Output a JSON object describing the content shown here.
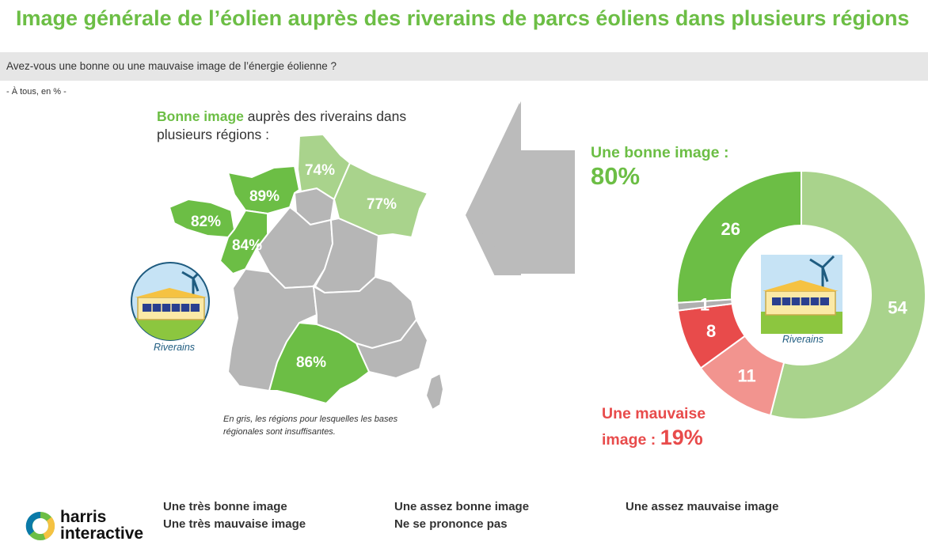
{
  "title": "Image générale de l’éolien auprès des riverains de parcs éoliens dans plusieurs régions",
  "question": "Avez-vous une bonne ou une mauvaise image de l’énergie éolienne ?",
  "base": "- À tous, en % -",
  "map": {
    "heading_highlight": "Bonne image",
    "heading_rest": " auprès des riverains dans plusieurs régions :",
    "regions": [
      {
        "name": "Hauts-de-France",
        "value": "74%"
      },
      {
        "name": "Grand Est",
        "value": "77%"
      },
      {
        "name": "Normandie",
        "value": "89%"
      },
      {
        "name": "Bretagne",
        "value": "82%"
      },
      {
        "name": "Pays de la Loire",
        "value": "84%"
      },
      {
        "name": "Occitanie",
        "value": "86%"
      }
    ],
    "note": "En gris, les régions pour lesquelles les bases régionales sont insuffisantes.",
    "icon_label": "Riverains"
  },
  "summary": {
    "good_label": "Une bonne image :",
    "good_value": "80%",
    "bad_label_1": "Une mauvaise",
    "bad_label_2": "image : ",
    "bad_value": "19%",
    "icon_label": "Riverains"
  },
  "legend": [
    {
      "label": "Une très bonne image",
      "color": "#6cbe45"
    },
    {
      "label": "Une assez bonne image",
      "color": "#a9d38c"
    },
    {
      "label": "Une assez mauvaise image",
      "color": "#f2948f"
    },
    {
      "label": "Une très mauvaise image",
      "color": "#e84b4b"
    },
    {
      "label": "Ne se prononce pas",
      "color": "#b0b0b0"
    }
  ],
  "logo": {
    "line1": "harris",
    "line2": "interactive"
  },
  "colors": {
    "accent_green": "#6cbe45",
    "light_green": "#a9d38c",
    "light_red": "#f2948f",
    "red": "#e84b4b",
    "grey_region": "#b6b6b6",
    "question_bar": "#e6e6e6",
    "icon_blue": "#1f5c80"
  },
  "chart_data": [
    {
      "type": "pie",
      "variant": "donut",
      "series": [
        {
          "name": "Une très bonne image",
          "value": 26
        },
        {
          "name": "Une assez bonne image",
          "value": 54
        },
        {
          "name": "Une assez mauvaise image",
          "value": 11
        },
        {
          "name": "Une très mauvaise image",
          "value": 8
        },
        {
          "name": "Ne se prononce pas",
          "value": 1
        }
      ],
      "labels": [
        "26",
        "54",
        "11",
        "8",
        "1"
      ]
    },
    {
      "type": "map",
      "categories": [
        "Hauts-de-France",
        "Grand Est",
        "Normandie",
        "Bretagne",
        "Pays de la Loire",
        "Occitanie"
      ],
      "values": [
        74,
        77,
        89,
        82,
        84,
        86
      ],
      "unit": "%"
    }
  ]
}
